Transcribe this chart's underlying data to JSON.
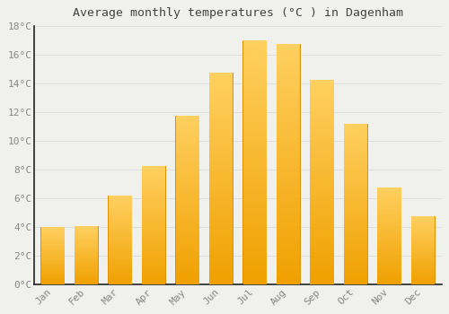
{
  "title": "Average monthly temperatures (°C ) in Dagenham",
  "months": [
    "Jan",
    "Feb",
    "Mar",
    "Apr",
    "May",
    "Jun",
    "Jul",
    "Aug",
    "Sep",
    "Oct",
    "Nov",
    "Dec"
  ],
  "values": [
    4.0,
    4.1,
    6.2,
    8.3,
    11.8,
    14.8,
    17.0,
    16.8,
    14.3,
    11.2,
    6.8,
    4.8
  ],
  "bar_color_bottom": "#F0A000",
  "bar_color_top": "#FFD060",
  "bar_edge_color": "#E09000",
  "background_color": "#F0F0EC",
  "grid_color": "#DDDDDD",
  "text_color": "#888888",
  "title_color": "#444444",
  "ylim": [
    0,
    18
  ],
  "yticks": [
    0,
    2,
    4,
    6,
    8,
    10,
    12,
    14,
    16,
    18
  ],
  "bar_width": 0.7,
  "figsize": [
    5.0,
    3.5
  ],
  "dpi": 100
}
